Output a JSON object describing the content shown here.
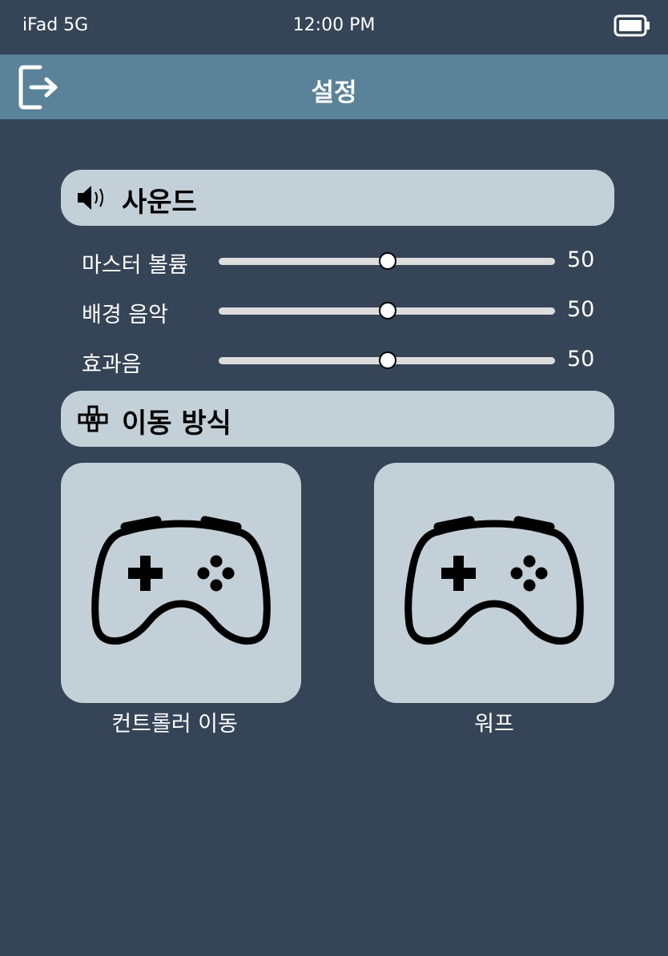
{
  "status_bar": {
    "carrier": "iFad 5G",
    "time": "12:00 PM",
    "battery_icon": "battery-full-icon"
  },
  "nav": {
    "title": "설정",
    "exit_icon": "exit-icon"
  },
  "sound_section": {
    "title": "사운드",
    "icon": "speaker-icon",
    "sliders": [
      {
        "label": "마스터 볼륨",
        "value": "50",
        "level": 0.5
      },
      {
        "label": "배경 음악",
        "value": "50",
        "level": 0.5
      },
      {
        "label": "효과음",
        "value": "50",
        "level": 0.5
      }
    ]
  },
  "movement_section": {
    "title": "이동 방식",
    "icon": "dpad-icon",
    "options": [
      {
        "label": "컨트롤러 이동",
        "icon": "gamepad-icon"
      },
      {
        "label": "워프",
        "icon": "gamepad-icon"
      }
    ]
  },
  "colors": {
    "background": "#354457",
    "nav_bar": "#5a8299",
    "panel": "#c4d0d7",
    "slider_track": "#dcdcdc"
  }
}
